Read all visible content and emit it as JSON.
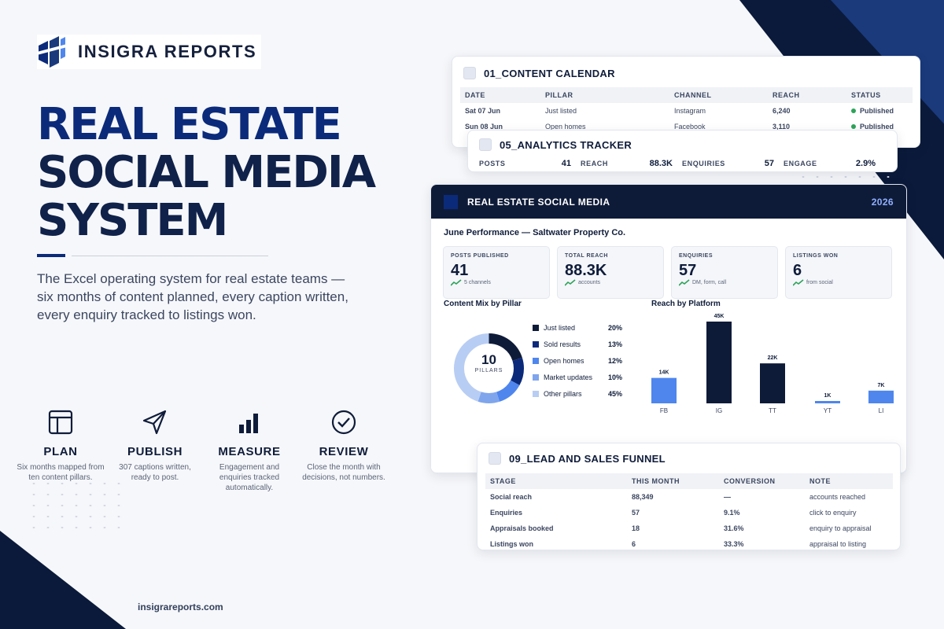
{
  "brand": {
    "name": "INSIGRA REPORTS",
    "url": "insigrareports.com"
  },
  "hero": {
    "title_lines": [
      "REAL ESTATE",
      "SOCIAL MEDIA",
      "SYSTEM"
    ],
    "subtitle": "The Excel operating system for real estate teams — six months of content planned, every caption written, every enquiry tracked to listings won."
  },
  "steps": [
    {
      "icon": "layout-icon",
      "title": "PLAN",
      "desc": "Six months mapped from ten content pillars."
    },
    {
      "icon": "send-icon",
      "title": "PUBLISH",
      "desc": "307 captions written, ready to post."
    },
    {
      "icon": "bar-chart-icon",
      "title": "MEASURE",
      "desc": "Engagement and enquiries tracked automatically."
    },
    {
      "icon": "check-circle-icon",
      "title": "REVIEW",
      "desc": "Close the month with decisions, not numbers."
    }
  ],
  "calendar": {
    "title": "01_CONTENT CALENDAR",
    "columns": [
      "DATE",
      "PILLAR",
      "CHANNEL",
      "REACH",
      "STATUS"
    ],
    "rows": [
      [
        "Sat 07 Jun",
        "Just listed",
        "Instagram",
        "6,240",
        "Published"
      ],
      [
        "Sun 08 Jun",
        "Open homes",
        "Facebook",
        "3,110",
        "Published"
      ]
    ]
  },
  "analytics": {
    "title": "05_ANALYTICS TRACKER",
    "cells": [
      {
        "k": "POSTS",
        "v": "41"
      },
      {
        "k": "REACH",
        "v": "88.3K"
      },
      {
        "k": "ENQUIRIES",
        "v": "57"
      },
      {
        "k": "ENGAGE",
        "v": "2.9%"
      }
    ]
  },
  "dashboard": {
    "title": "REAL ESTATE SOCIAL MEDIA",
    "year": "2026",
    "subtitle": "June Performance — Saltwater Property Co.",
    "kpis": [
      {
        "label": "POSTS PUBLISHED",
        "value": "41",
        "foot": "5 channels"
      },
      {
        "label": "TOTAL REACH",
        "value": "88.3K",
        "foot": "accounts"
      },
      {
        "label": "ENQUIRIES",
        "value": "57",
        "foot": "DM, form, call"
      },
      {
        "label": "LISTINGS WON",
        "value": "6",
        "foot": "from social"
      }
    ],
    "mix_title": "Content Mix by Pillar",
    "reach_title": "Reach by Platform",
    "donut_center": {
      "number": "10",
      "label": "PILLARS"
    }
  },
  "chart_data": [
    {
      "type": "pie",
      "title": "Content Mix by Pillar",
      "categories": [
        "Just listed",
        "Sold results",
        "Open homes",
        "Market updates",
        "Other pillars"
      ],
      "values": [
        20,
        13,
        12,
        10,
        45
      ],
      "labels": [
        "20%",
        "13%",
        "12%",
        "10%",
        "45%"
      ],
      "colors": [
        "#0e1b38",
        "#0b2a7a",
        "#4f86ee",
        "#7fa5ec",
        "#b8cdf3"
      ]
    },
    {
      "type": "bar",
      "title": "Reach by Platform",
      "categories": [
        "FB",
        "IG",
        "TT",
        "YT",
        "LI"
      ],
      "values": [
        14,
        45,
        22,
        1,
        7
      ],
      "labels": [
        "14K",
        "45K",
        "22K",
        "1K",
        "7K"
      ],
      "colors": [
        "#4f86ee",
        "#0e1b38",
        "#0e1b38",
        "#4f86ee",
        "#4f86ee"
      ]
    }
  ],
  "funnel": {
    "title": "09_LEAD AND SALES FUNNEL",
    "columns": [
      "STAGE",
      "THIS MONTH",
      "CONVERSION",
      "NOTE"
    ],
    "rows": [
      [
        "Social reach",
        "88,349",
        "—",
        "accounts reached"
      ],
      [
        "Enquiries",
        "57",
        "9.1%",
        "click to enquiry"
      ],
      [
        "Appraisals booked",
        "18",
        "31.6%",
        "enquiry to appraisal"
      ],
      [
        "Listings won",
        "6",
        "33.3%",
        "appraisal to listing"
      ]
    ]
  }
}
